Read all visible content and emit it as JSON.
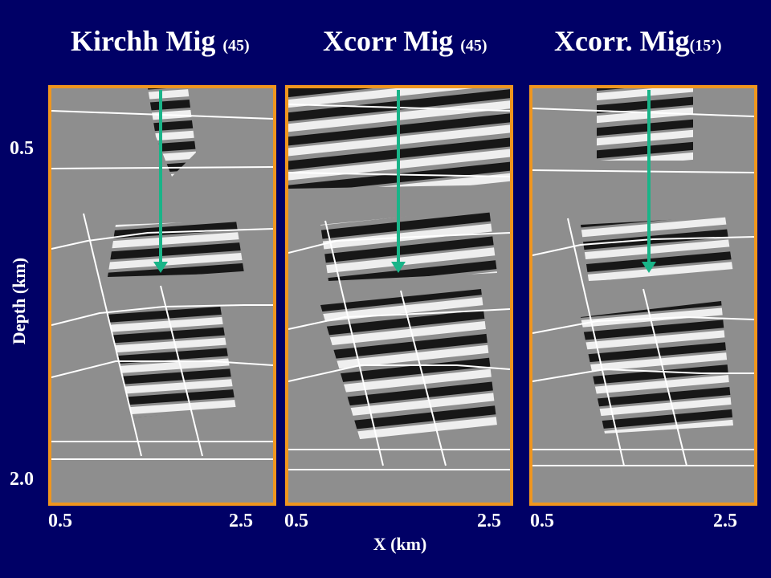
{
  "titles": [
    {
      "main": "Kirchh Mig ",
      "sub": "(45)"
    },
    {
      "main": "Xcorr Mig ",
      "sub": "(45)"
    },
    {
      "main": "Xcorr. Mig",
      "sub": "(15’)"
    }
  ],
  "y_axis": {
    "label": "Depth (km)",
    "ticks": [
      "0.5",
      "2.0"
    ]
  },
  "x_axis": {
    "label": "X (km)",
    "ticks": [
      "0.5",
      "2.5"
    ]
  },
  "colors": {
    "background": "#000066",
    "panel_border": "#f0961e",
    "arrow": "#19b488",
    "horizon_lines": "#ffffff"
  }
}
